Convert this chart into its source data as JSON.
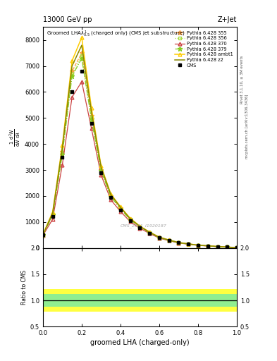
{
  "title_top": "13000 GeV pp",
  "title_right": "Z+Jet",
  "plot_title": "Groomed LHA\\u03bb^1_{0.5}  (charged only) (CMS jet substructure)",
  "ylabel_ratio": "Ratio to CMS",
  "xlabel": "groomed LHA (charged-only)",
  "right_label_top": "Rivet 3.1.10, ≥ 3M events",
  "right_label_bot": "mcplots.cern.ch [arXiv:1306.3436]",
  "watermark": "CMS_2021_I1920187",
  "cms_label": "CMS",
  "x_data": [
    0.0,
    0.05,
    0.1,
    0.15,
    0.2,
    0.25,
    0.3,
    0.35,
    0.4,
    0.45,
    0.5,
    0.55,
    0.6,
    0.65,
    0.7,
    0.75,
    0.8,
    0.85,
    0.9,
    0.95,
    1.0
  ],
  "cms_y": [
    500,
    1200,
    3500,
    6000,
    6800,
    4800,
    2900,
    1950,
    1450,
    1050,
    780,
    570,
    390,
    285,
    195,
    145,
    98,
    76,
    48,
    28,
    8
  ],
  "py355_y": [
    510,
    1300,
    3700,
    6800,
    7500,
    5100,
    3000,
    2000,
    1530,
    1100,
    810,
    590,
    400,
    295,
    200,
    150,
    100,
    78,
    50,
    30,
    10
  ],
  "py356_y": [
    505,
    1280,
    3650,
    6700,
    7400,
    5000,
    2980,
    1980,
    1510,
    1090,
    800,
    585,
    395,
    290,
    198,
    148,
    99,
    77,
    49,
    29,
    9
  ],
  "py370_y": [
    480,
    1100,
    3200,
    5800,
    6400,
    4600,
    2800,
    1850,
    1400,
    1010,
    755,
    555,
    375,
    275,
    188,
    140,
    94,
    73,
    46,
    27,
    8
  ],
  "py379_y": [
    500,
    1250,
    3600,
    6600,
    7300,
    4950,
    2960,
    1970,
    1500,
    1080,
    800,
    582,
    393,
    288,
    197,
    147,
    98,
    76,
    48,
    29,
    9
  ],
  "py_ambt1_y": [
    520,
    1380,
    3950,
    7200,
    8100,
    5400,
    3150,
    2080,
    1580,
    1140,
    840,
    610,
    415,
    305,
    208,
    155,
    104,
    81,
    52,
    31,
    10
  ],
  "py_z2_y": [
    510,
    1330,
    3850,
    7000,
    7800,
    5250,
    3100,
    2050,
    1560,
    1120,
    825,
    600,
    408,
    300,
    205,
    153,
    102,
    79,
    51,
    30,
    10
  ],
  "colors": {
    "cms": "#000000",
    "py355": "#FFA040",
    "py356": "#AADD44",
    "py370": "#CC4444",
    "py379": "#88CC22",
    "py_ambt1": "#FFCC00",
    "py_z2": "#888800"
  },
  "green_band_upper": 1.12,
  "green_band_lower": 0.88,
  "yellow_band_upper": 1.22,
  "yellow_band_lower": 0.78,
  "ratio_ylim": [
    0.5,
    2.0
  ],
  "ratio_yticks": [
    0.5,
    1.0,
    1.5,
    2.0
  ],
  "main_ylim": [
    0,
    8500
  ],
  "main_yticks": [
    0,
    1000,
    2000,
    3000,
    4000,
    5000,
    6000,
    7000,
    8000
  ],
  "xlim": [
    0.0,
    1.0
  ]
}
